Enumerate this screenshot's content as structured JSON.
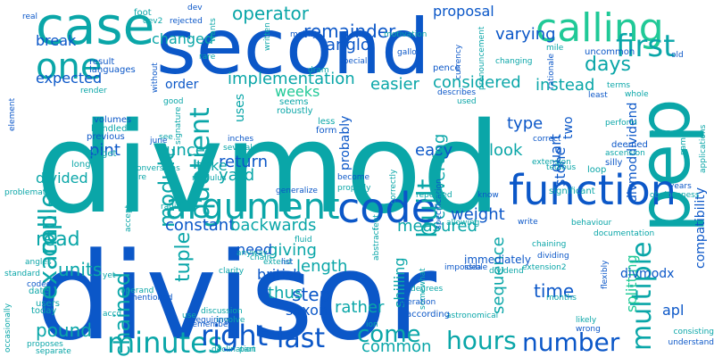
{
  "palette": {
    "dark_blue": "#0b57c8",
    "blue": "#1279c4",
    "teal": "#0aa6a8",
    "cyan": "#14b8c4",
    "green": "#20c997",
    "sea": "#12b3a2"
  },
  "words": [
    {
      "text": "divmod",
      "color": "#0aa6a8"
    },
    {
      "text": "divisor",
      "color": "#0b57c8"
    },
    {
      "text": "second",
      "color": "#0b57c8"
    },
    {
      "text": "case",
      "color": "#0aa6a8"
    },
    {
      "text": "pep",
      "color": "#0aa6a8"
    },
    {
      "text": "calling",
      "color": "#20c997"
    },
    {
      "text": "one",
      "color": "#0aa6a8"
    },
    {
      "text": "first",
      "color": "#0aa6a8"
    },
    {
      "text": "function",
      "color": "#0b57c8"
    },
    {
      "text": "argument",
      "color": "#0aa6a8"
    },
    {
      "text": "code",
      "color": "#0b57c8"
    },
    {
      "text": "example",
      "color": "#0aa6a8"
    },
    {
      "text": "call",
      "color": "#0aa6a8"
    },
    {
      "text": "quotient",
      "color": "#0aa6a8"
    },
    {
      "text": "module",
      "color": "#0aa6a8"
    },
    {
      "text": "multiple",
      "color": "#0aa6a8"
    },
    {
      "text": "minutes",
      "color": "#0aa6a8"
    },
    {
      "text": "hours",
      "color": "#0aa6a8"
    },
    {
      "text": "right",
      "color": "#0b57c8"
    },
    {
      "text": "last",
      "color": "#0b57c8"
    },
    {
      "text": "come",
      "color": "#0aa6a8"
    },
    {
      "text": "number",
      "color": "#0b57c8"
    },
    {
      "text": "read",
      "color": "#0aa6a8"
    },
    {
      "text": "chained",
      "color": "#0aa6a8"
    },
    {
      "text": "built",
      "color": "#0aa6a8"
    },
    {
      "text": "tuple",
      "color": "#0aa6a8"
    },
    {
      "text": "days",
      "color": "#0aa6a8"
    },
    {
      "text": "remainder",
      "color": "#0b57c8"
    },
    {
      "text": "operator",
      "color": "#0aa6a8"
    },
    {
      "text": "varying",
      "color": "#0b57c8"
    },
    {
      "text": "implementation",
      "color": "#0aa6a8"
    },
    {
      "text": "considered",
      "color": "#0aa6a8"
    },
    {
      "text": "instead",
      "color": "#0aa6a8"
    },
    {
      "text": "easier",
      "color": "#0aa6a8"
    },
    {
      "text": "anglo",
      "color": "#0b57c8"
    },
    {
      "text": "break",
      "color": "#0b57c8"
    },
    {
      "text": "changed",
      "color": "#0aa6a8"
    },
    {
      "text": "expected",
      "color": "#0b57c8"
    },
    {
      "text": "order",
      "color": "#0b57c8"
    },
    {
      "text": "weeks",
      "color": "#20c997"
    },
    {
      "text": "uses",
      "color": "#0aa6a8"
    },
    {
      "text": "return",
      "color": "#0b57c8"
    },
    {
      "text": "take",
      "color": "#0aa6a8"
    },
    {
      "text": "yard",
      "color": "#0aa6a8"
    },
    {
      "text": "ounce",
      "color": "#0aa6a8"
    },
    {
      "text": "pint",
      "color": "#0b57c8"
    },
    {
      "text": "divided",
      "color": "#0aa6a8"
    },
    {
      "text": "constant",
      "color": "#0b57c8"
    },
    {
      "text": "backwards",
      "color": "#0aa6a8"
    },
    {
      "text": "giving",
      "color": "#0aa6a8"
    },
    {
      "text": "weight",
      "color": "#0b57c8"
    },
    {
      "text": "measured",
      "color": "#0aa6a8"
    },
    {
      "text": "type",
      "color": "#0b57c8"
    },
    {
      "text": "look",
      "color": "#0aa6a8"
    },
    {
      "text": "two",
      "color": "#0b57c8"
    },
    {
      "text": "easy",
      "color": "#0b57c8"
    },
    {
      "text": "quart",
      "color": "#0b57c8"
    },
    {
      "text": "probably",
      "color": "#0b57c8"
    },
    {
      "text": "converting",
      "color": "#0aa6a8"
    },
    {
      "text": "stone",
      "color": "#0b57c8"
    },
    {
      "text": "divmoddividend",
      "color": "#0b57c8"
    },
    {
      "text": "compatibility",
      "color": "#0b57c8"
    },
    {
      "text": "units",
      "color": "#0aa6a8"
    },
    {
      "text": "need",
      "color": "#0b57c8"
    },
    {
      "text": "length",
      "color": "#0aa6a8"
    },
    {
      "text": "step",
      "color": "#0b57c8"
    },
    {
      "text": "thus",
      "color": "#0aa6a8"
    },
    {
      "text": "british",
      "color": "#0b57c8"
    },
    {
      "text": "saxon",
      "color": "#0b57c8"
    },
    {
      "text": "rather",
      "color": "#0aa6a8"
    },
    {
      "text": "shilling",
      "color": "#0aa6a8"
    },
    {
      "text": "sequence",
      "color": "#0aa6a8"
    },
    {
      "text": "time",
      "color": "#0b57c8"
    },
    {
      "text": "splitting",
      "color": "#20c997"
    },
    {
      "text": "apl",
      "color": "#0b57c8"
    },
    {
      "text": "pound",
      "color": "#0aa6a8"
    },
    {
      "text": "common",
      "color": "#0aa6a8"
    },
    {
      "text": "divmodx",
      "color": "#0b57c8"
    },
    {
      "text": "proposal",
      "color": "#0b57c8"
    },
    {
      "text": "real",
      "color": "#0b57c8"
    },
    {
      "text": "rejected",
      "color": "#0b57c8"
    },
    {
      "text": "wants",
      "color": "#0aa6a8"
    },
    {
      "text": "foot",
      "color": "#0aa6a8"
    },
    {
      "text": "result",
      "color": "#0b57c8"
    },
    {
      "text": "languages",
      "color": "#0b57c8"
    },
    {
      "text": "motivation",
      "color": "#0aa6a8"
    },
    {
      "text": "gallon",
      "color": "#0b57c8"
    },
    {
      "text": "dev",
      "color": "#0b57c8"
    },
    {
      "text": "pence",
      "color": "#0b57c8"
    },
    {
      "text": "currency",
      "color": "#0b57c8"
    },
    {
      "text": "special",
      "color": "#0b57c8"
    },
    {
      "text": "changing",
      "color": "#0aa6a8"
    },
    {
      "text": "mainly",
      "color": "#0b57c8"
    },
    {
      "text": "written",
      "color": "#0aa6a8"
    },
    {
      "text": "pronouncement",
      "color": "#0aa6a8"
    },
    {
      "text": "uncommon",
      "color": "#0b57c8"
    },
    {
      "text": "rationale",
      "color": "#0b57c8"
    },
    {
      "text": "mile",
      "color": "#0aa6a8"
    },
    {
      "text": "old",
      "color": "#0b57c8"
    },
    {
      "text": "rare",
      "color": "#0aa6a8"
    },
    {
      "text": "dram",
      "color": "#0aa6a8"
    },
    {
      "text": "good",
      "color": "#0aa6a8"
    },
    {
      "text": "element",
      "color": "#0b57c8"
    },
    {
      "text": "render",
      "color": "#0aa6a8"
    },
    {
      "text": "without",
      "color": "#0b57c8"
    },
    {
      "text": "volumes",
      "color": "#0b57c8"
    },
    {
      "text": "handled",
      "color": "#0aa6a8"
    },
    {
      "text": "previous",
      "color": "#0b57c8"
    },
    {
      "text": "target",
      "color": "#0aa6a8"
    },
    {
      "text": "long",
      "color": "#0aa6a8"
    },
    {
      "text": "see",
      "color": "#0aa6a8"
    },
    {
      "text": "june",
      "color": "#0b57c8"
    },
    {
      "text": "signature",
      "color": "#0aa6a8"
    },
    {
      "text": "inches",
      "color": "#0b57c8"
    },
    {
      "text": "several",
      "color": "#0aa6a8"
    },
    {
      "text": "seems",
      "color": "#0aa6a8"
    },
    {
      "text": "robustly",
      "color": "#0aa6a8"
    },
    {
      "text": "less",
      "color": "#0aa6a8"
    },
    {
      "text": "form",
      "color": "#0b57c8"
    },
    {
      "text": "describes",
      "color": "#0b57c8"
    },
    {
      "text": "used",
      "color": "#0aa6a8"
    },
    {
      "text": "least",
      "color": "#0b57c8"
    },
    {
      "text": "whole",
      "color": "#0aa6a8"
    },
    {
      "text": "terms",
      "color": "#0aa6a8"
    },
    {
      "text": "perform",
      "color": "#0aa6a8"
    },
    {
      "text": "clear",
      "color": "#0aa6a8"
    },
    {
      "text": "deemed",
      "color": "#0b57c8"
    },
    {
      "text": "ascension",
      "color": "#0aa6a8"
    },
    {
      "text": "silly",
      "color": "#0b57c8"
    },
    {
      "text": "loop",
      "color": "#0aa6a8"
    },
    {
      "text": "correct",
      "color": "#0b57c8"
    },
    {
      "text": "extension",
      "color": "#0aa6a8"
    },
    {
      "text": "tedious",
      "color": "#0aa6a8"
    },
    {
      "text": "name",
      "color": "#0aa6a8"
    },
    {
      "text": "applications",
      "color": "#0aa6a8"
    },
    {
      "text": "years",
      "color": "#0b57c8"
    },
    {
      "text": "obviousness",
      "color": "#0aa6a8"
    },
    {
      "text": "significant",
      "color": "#0aa6a8"
    },
    {
      "text": "problematic",
      "color": "#0aa6a8"
    },
    {
      "text": "dev2",
      "color": "#0aa6a8"
    },
    {
      "text": "conversions",
      "color": "#0aa6a8"
    },
    {
      "text": "modulus",
      "color": "#0aa6a8"
    },
    {
      "text": "generalize",
      "color": "#0b57c8"
    },
    {
      "text": "become",
      "color": "#0b57c8"
    },
    {
      "text": "properly",
      "color": "#0aa6a8"
    },
    {
      "text": "correctly",
      "color": "#0aa6a8"
    },
    {
      "text": "specification",
      "color": "#0b57c8"
    },
    {
      "text": "repeated",
      "color": "#0aa6a8"
    },
    {
      "text": "know",
      "color": "#0b57c8"
    },
    {
      "text": "re",
      "color": "#0aa6a8"
    },
    {
      "text": "accept",
      "color": "#0aa6a8"
    },
    {
      "text": "radix",
      "color": "#0aa6a8"
    },
    {
      "text": "fluid",
      "color": "#0aa6a8"
    },
    {
      "text": "feet",
      "color": "#0aa6a8"
    },
    {
      "text": "abstract",
      "color": "#0aa6a8"
    },
    {
      "text": "allowing",
      "color": "#0aa6a8"
    },
    {
      "text": "write",
      "color": "#0b57c8"
    },
    {
      "text": "behaviour",
      "color": "#0aa6a8"
    },
    {
      "text": "documentation",
      "color": "#0aa6a8"
    },
    {
      "text": "chaining",
      "color": "#0aa6a8"
    },
    {
      "text": "dividing",
      "color": "#0b57c8"
    },
    {
      "text": "immediately",
      "color": "#0b57c8"
    },
    {
      "text": "extend",
      "color": "#0aa6a8"
    },
    {
      "text": "list",
      "color": "#0b57c8"
    },
    {
      "text": "chain",
      "color": "#0aa6a8"
    },
    {
      "text": "anyway",
      "color": "#0aa6a8"
    },
    {
      "text": "angles",
      "color": "#0aa6a8"
    },
    {
      "text": "standard",
      "color": "#0aa6a8"
    },
    {
      "text": "clarity",
      "color": "#0aa6a8"
    },
    {
      "text": "yet",
      "color": "#0aa6a8"
    },
    {
      "text": "somewhat",
      "color": "#0aa6a8"
    },
    {
      "text": "impossible",
      "color": "#0b57c8"
    },
    {
      "text": "idea",
      "color": "#0b57c8"
    },
    {
      "text": "dividend",
      "color": "#0aa6a8"
    },
    {
      "text": "extension2",
      "color": "#0aa6a8"
    },
    {
      "text": "flexibly",
      "color": "#0b57c8"
    },
    {
      "text": "astronomical",
      "color": "#0aa6a8"
    },
    {
      "text": "occasionally",
      "color": "#0aa6a8"
    },
    {
      "text": "date",
      "color": "#0aa6a8"
    },
    {
      "text": "coded",
      "color": "#0b57c8"
    },
    {
      "text": "users",
      "color": "#0aa6a8"
    },
    {
      "text": "today",
      "color": "#0aa6a8"
    },
    {
      "text": "operand",
      "color": "#0aa6a8"
    },
    {
      "text": "mentioned",
      "color": "#0b57c8"
    },
    {
      "text": "accd",
      "color": "#0aa6a8"
    },
    {
      "text": "discussion",
      "color": "#0aa6a8"
    },
    {
      "text": "involve",
      "color": "#0aa6a8"
    },
    {
      "text": "use",
      "color": "#0aa6a8"
    },
    {
      "text": "requiring",
      "color": "#0b57c8"
    },
    {
      "text": "remember",
      "color": "#0b57c8"
    },
    {
      "text": "degrees",
      "color": "#0aa6a8"
    },
    {
      "text": "operation",
      "color": "#0b57c8"
    },
    {
      "text": "months",
      "color": "#0aa6a8"
    },
    {
      "text": "according",
      "color": "#0b57c8"
    },
    {
      "text": "likely",
      "color": "#0aa6a8"
    },
    {
      "text": "wrong",
      "color": "#0b57c8"
    },
    {
      "text": "consisting",
      "color": "#0aa6a8"
    },
    {
      "text": "understand",
      "color": "#0b57c8"
    },
    {
      "text": "proposes",
      "color": "#0aa6a8"
    },
    {
      "text": "separate",
      "color": "#0aa6a8"
    },
    {
      "text": "declination",
      "color": "#0aa6a8"
    },
    {
      "text": "part",
      "color": "#0aa6a8"
    },
    {
      "text": "ion",
      "color": "#0aa6a8"
    }
  ]
}
